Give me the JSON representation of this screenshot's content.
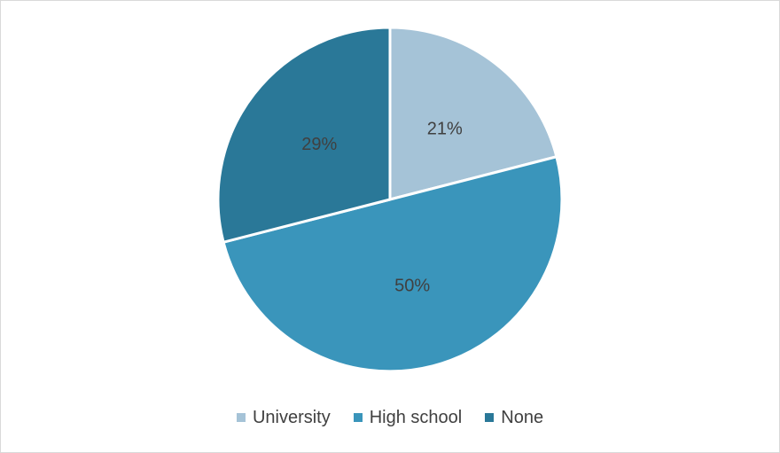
{
  "chart_data": {
    "type": "pie",
    "title": "",
    "categories": [
      "University",
      "High school",
      "None"
    ],
    "values": [
      21,
      50,
      29
    ],
    "labels": [
      "21%",
      "50%",
      "29%"
    ],
    "colors": [
      "#a5c3d7",
      "#3a95bb",
      "#2a7898"
    ],
    "legend_position": "bottom"
  },
  "legend": {
    "items": [
      {
        "label": "University",
        "color": "#a5c3d7"
      },
      {
        "label": "High school",
        "color": "#3a95bb"
      },
      {
        "label": "None",
        "color": "#2a7898"
      }
    ]
  }
}
